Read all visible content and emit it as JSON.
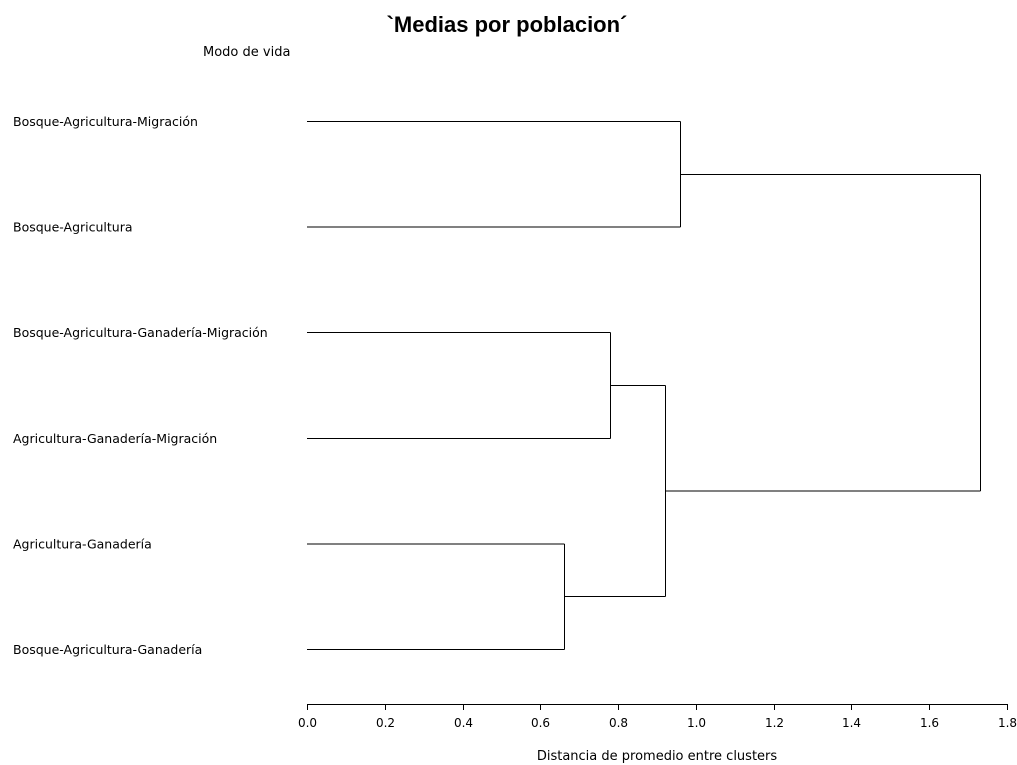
{
  "chart_data": {
    "type": "dendrogram",
    "title": "`Medias por poblacion´",
    "y_caption": "Modo de vida",
    "xlabel": "Distancia de promedio entre clusters",
    "xlim": [
      0.0,
      1.8
    ],
    "x_ticks": [
      "0.0",
      "0.2",
      "0.4",
      "0.6",
      "0.8",
      "1.0",
      "1.2",
      "1.4",
      "1.6",
      "1.8"
    ],
    "leaves": [
      "Bosque-Agricultura-Migración",
      "Bosque-Agricultura",
      "Bosque-Agricultura-Ganadería-Migración",
      "Agricultura-Ganadería-Migración",
      "Agricultura-Ganadería",
      "Bosque-Agricultura-Ganadería"
    ],
    "merges": [
      {
        "id": "c1",
        "children": [
          "L0",
          "L1"
        ],
        "distance": 0.96
      },
      {
        "id": "c2",
        "children": [
          "L2",
          "L3"
        ],
        "distance": 0.78
      },
      {
        "id": "c3",
        "children": [
          "L4",
          "L5"
        ],
        "distance": 0.66
      },
      {
        "id": "c4",
        "children": [
          "c2",
          "c3"
        ],
        "distance": 0.92
      },
      {
        "id": "c5",
        "children": [
          "c1",
          "c4"
        ],
        "distance": 1.73
      }
    ]
  }
}
